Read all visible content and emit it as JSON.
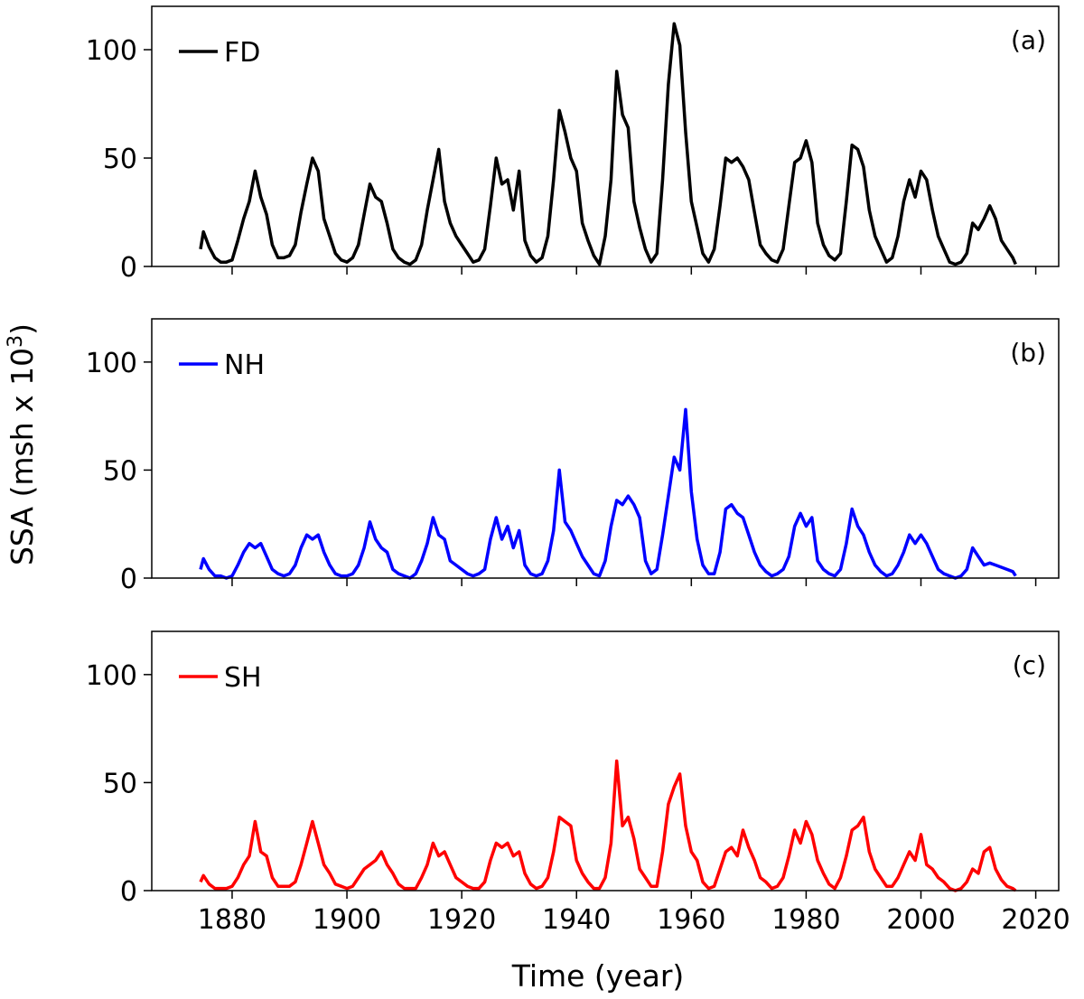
{
  "figure": {
    "ylabel_main": "SSA (msh x 10",
    "ylabel_sup": "3",
    "ylabel_close": ")",
    "xlabel": "Time (year)"
  },
  "chart_data": [
    {
      "type": "line",
      "panel": "(a)",
      "legend": "FD",
      "color": "#000000",
      "xlim": [
        1866,
        2024
      ],
      "ylim": [
        0,
        120
      ],
      "yticks": [
        0,
        50,
        100
      ],
      "xticks": [
        1880,
        1900,
        1920,
        1940,
        1960,
        1980,
        2000,
        2020
      ],
      "show_xtick_labels": false,
      "x": [
        1874.5,
        1875,
        1876,
        1877,
        1878,
        1879,
        1880,
        1881,
        1882,
        1883,
        1884,
        1885,
        1886,
        1887,
        1888,
        1889,
        1890,
        1891,
        1892,
        1893,
        1894,
        1895,
        1896,
        1897,
        1898,
        1899,
        1900,
        1901,
        1902,
        1903,
        1904,
        1905,
        1906,
        1907,
        1908,
        1909,
        1910,
        1911,
        1912,
        1913,
        1914,
        1915,
        1916,
        1917,
        1918,
        1919,
        1920,
        1921,
        1922,
        1923,
        1924,
        1925,
        1926,
        1927,
        1928,
        1929,
        1930,
        1931,
        1932,
        1933,
        1934,
        1935,
        1936,
        1937,
        1938,
        1939,
        1940,
        1941,
        1942,
        1943,
        1944,
        1945,
        1946,
        1947,
        1948,
        1949,
        1950,
        1951,
        1952,
        1953,
        1954,
        1955,
        1956,
        1957,
        1958,
        1959,
        1960,
        1961,
        1962,
        1963,
        1964,
        1965,
        1966,
        1967,
        1968,
        1969,
        1970,
        1971,
        1972,
        1973,
        1974,
        1975,
        1976,
        1977,
        1978,
        1979,
        1980,
        1981,
        1982,
        1983,
        1984,
        1985,
        1986,
        1987,
        1988,
        1989,
        1990,
        1991,
        1992,
        1993,
        1994,
        1995,
        1996,
        1997,
        1998,
        1999,
        2000,
        2001,
        2002,
        2003,
        2004,
        2005,
        2006,
        2007,
        2008,
        2009,
        2010,
        2011,
        2012,
        2013,
        2014,
        2015,
        2016,
        2016.5
      ],
      "values": [
        8,
        16,
        9,
        4,
        2,
        2,
        3,
        12,
        22,
        30,
        44,
        32,
        24,
        10,
        4,
        4,
        5,
        10,
        25,
        38,
        50,
        44,
        22,
        14,
        6,
        3,
        2,
        4,
        10,
        24,
        38,
        32,
        30,
        20,
        8,
        4,
        2,
        1,
        3,
        10,
        26,
        40,
        54,
        30,
        20,
        14,
        10,
        6,
        2,
        3,
        8,
        28,
        50,
        38,
        40,
        26,
        44,
        12,
        5,
        2,
        4,
        14,
        40,
        72,
        62,
        50,
        44,
        20,
        12,
        5,
        1,
        14,
        40,
        90,
        70,
        64,
        30,
        18,
        8,
        2,
        6,
        40,
        84,
        112,
        102,
        62,
        30,
        18,
        6,
        2,
        8,
        28,
        50,
        48,
        50,
        46,
        40,
        25,
        10,
        6,
        3,
        2,
        8,
        28,
        48,
        50,
        58,
        48,
        20,
        10,
        5,
        3,
        6,
        30,
        56,
        54,
        46,
        26,
        14,
        8,
        2,
        4,
        14,
        30,
        40,
        32,
        44,
        40,
        26,
        14,
        8,
        2,
        1,
        2,
        6,
        20,
        17,
        22,
        28,
        22,
        12,
        8,
        4,
        1
      ]
    },
    {
      "type": "line",
      "panel": "(b)",
      "legend": "NH",
      "color": "#0000ff",
      "xlim": [
        1866,
        2024
      ],
      "ylim": [
        0,
        120
      ],
      "yticks": [
        0,
        50,
        100
      ],
      "xticks": [
        1880,
        1900,
        1920,
        1940,
        1960,
        1980,
        2000,
        2020
      ],
      "show_xtick_labels": false,
      "x": [
        1874.5,
        1875,
        1876,
        1877,
        1878,
        1879,
        1880,
        1881,
        1882,
        1883,
        1884,
        1885,
        1886,
        1887,
        1888,
        1889,
        1890,
        1891,
        1892,
        1893,
        1894,
        1895,
        1896,
        1897,
        1898,
        1899,
        1900,
        1901,
        1902,
        1903,
        1904,
        1905,
        1906,
        1907,
        1908,
        1909,
        1910,
        1911,
        1912,
        1913,
        1914,
        1915,
        1916,
        1917,
        1918,
        1919,
        1920,
        1921,
        1922,
        1923,
        1924,
        1925,
        1926,
        1927,
        1928,
        1929,
        1930,
        1931,
        1932,
        1933,
        1934,
        1935,
        1936,
        1937,
        1938,
        1939,
        1940,
        1941,
        1942,
        1943,
        1944,
        1945,
        1946,
        1947,
        1948,
        1949,
        1950,
        1951,
        1952,
        1953,
        1954,
        1955,
        1956,
        1957,
        1958,
        1959,
        1960,
        1961,
        1962,
        1963,
        1964,
        1965,
        1966,
        1967,
        1968,
        1969,
        1970,
        1971,
        1972,
        1973,
        1974,
        1975,
        1976,
        1977,
        1978,
        1979,
        1980,
        1981,
        1982,
        1983,
        1984,
        1985,
        1986,
        1987,
        1988,
        1989,
        1990,
        1991,
        1992,
        1993,
        1994,
        1995,
        1996,
        1997,
        1998,
        1999,
        2000,
        2001,
        2002,
        2003,
        2004,
        2005,
        2006,
        2007,
        2008,
        2009,
        2010,
        2011,
        2012,
        2013,
        2014,
        2015,
        2016,
        2016.5
      ],
      "values": [
        4,
        9,
        4,
        1,
        1,
        0,
        1,
        6,
        12,
        16,
        14,
        16,
        10,
        4,
        2,
        1,
        2,
        6,
        14,
        20,
        18,
        20,
        12,
        6,
        2,
        1,
        1,
        2,
        6,
        14,
        26,
        18,
        14,
        12,
        4,
        2,
        1,
        0,
        2,
        8,
        16,
        28,
        20,
        18,
        8,
        6,
        4,
        2,
        1,
        2,
        4,
        18,
        28,
        18,
        24,
        14,
        22,
        6,
        2,
        1,
        2,
        8,
        22,
        50,
        26,
        22,
        16,
        10,
        6,
        2,
        1,
        8,
        24,
        36,
        34,
        38,
        34,
        28,
        8,
        2,
        4,
        20,
        38,
        56,
        50,
        78,
        40,
        18,
        6,
        2,
        2,
        12,
        32,
        34,
        30,
        28,
        20,
        12,
        6,
        3,
        1,
        2,
        4,
        10,
        24,
        30,
        24,
        28,
        8,
        4,
        2,
        1,
        4,
        16,
        32,
        24,
        20,
        12,
        6,
        3,
        1,
        2,
        6,
        12,
        20,
        16,
        20,
        16,
        10,
        4,
        2,
        1,
        0,
        1,
        4,
        14,
        10,
        6,
        7,
        6,
        5,
        4,
        3,
        1
      ]
    },
    {
      "type": "line",
      "panel": "(c)",
      "legend": "SH",
      "color": "#ff0000",
      "xlim": [
        1866,
        2024
      ],
      "ylim": [
        0,
        120
      ],
      "yticks": [
        0,
        50,
        100
      ],
      "xticks": [
        1880,
        1900,
        1920,
        1940,
        1960,
        1980,
        2000,
        2020
      ],
      "show_xtick_labels": true,
      "x": [
        1874.5,
        1875,
        1876,
        1877,
        1878,
        1879,
        1880,
        1881,
        1882,
        1883,
        1884,
        1885,
        1886,
        1887,
        1888,
        1889,
        1890,
        1891,
        1892,
        1893,
        1894,
        1895,
        1896,
        1897,
        1898,
        1899,
        1900,
        1901,
        1902,
        1903,
        1904,
        1905,
        1906,
        1907,
        1908,
        1909,
        1910,
        1911,
        1912,
        1913,
        1914,
        1915,
        1916,
        1917,
        1918,
        1919,
        1920,
        1921,
        1922,
        1923,
        1924,
        1925,
        1926,
        1927,
        1928,
        1929,
        1930,
        1931,
        1932,
        1933,
        1934,
        1935,
        1936,
        1937,
        1938,
        1939,
        1940,
        1941,
        1942,
        1943,
        1944,
        1945,
        1946,
        1947,
        1948,
        1949,
        1950,
        1951,
        1952,
        1953,
        1954,
        1955,
        1956,
        1957,
        1958,
        1959,
        1960,
        1961,
        1962,
        1963,
        1964,
        1965,
        1966,
        1967,
        1968,
        1969,
        1970,
        1971,
        1972,
        1973,
        1974,
        1975,
        1976,
        1977,
        1978,
        1979,
        1980,
        1981,
        1982,
        1983,
        1984,
        1985,
        1986,
        1987,
        1988,
        1989,
        1990,
        1991,
        1992,
        1993,
        1994,
        1995,
        1996,
        1997,
        1998,
        1999,
        2000,
        2001,
        2002,
        2003,
        2004,
        2005,
        2006,
        2007,
        2008,
        2009,
        2010,
        2011,
        2012,
        2013,
        2014,
        2015,
        2016,
        2016.5
      ],
      "values": [
        4,
        7,
        3,
        1,
        1,
        1,
        2,
        6,
        12,
        16,
        32,
        18,
        16,
        6,
        2,
        2,
        2,
        4,
        12,
        22,
        32,
        22,
        12,
        8,
        3,
        2,
        1,
        2,
        6,
        10,
        12,
        14,
        18,
        12,
        8,
        3,
        1,
        1,
        1,
        6,
        12,
        22,
        16,
        18,
        12,
        6,
        4,
        2,
        1,
        1,
        4,
        14,
        22,
        20,
        22,
        16,
        18,
        8,
        3,
        1,
        2,
        6,
        18,
        34,
        32,
        30,
        14,
        8,
        4,
        1,
        1,
        6,
        22,
        60,
        30,
        34,
        24,
        10,
        6,
        2,
        2,
        18,
        40,
        48,
        54,
        30,
        18,
        14,
        4,
        1,
        2,
        10,
        18,
        20,
        16,
        28,
        20,
        14,
        6,
        4,
        1,
        2,
        6,
        16,
        28,
        22,
        32,
        26,
        14,
        8,
        3,
        1,
        6,
        16,
        28,
        30,
        34,
        18,
        10,
        6,
        2,
        2,
        6,
        12,
        18,
        14,
        26,
        12,
        10,
        6,
        4,
        1,
        0,
        1,
        4,
        10,
        8,
        18,
        20,
        10,
        5,
        2,
        1,
        0
      ]
    }
  ]
}
